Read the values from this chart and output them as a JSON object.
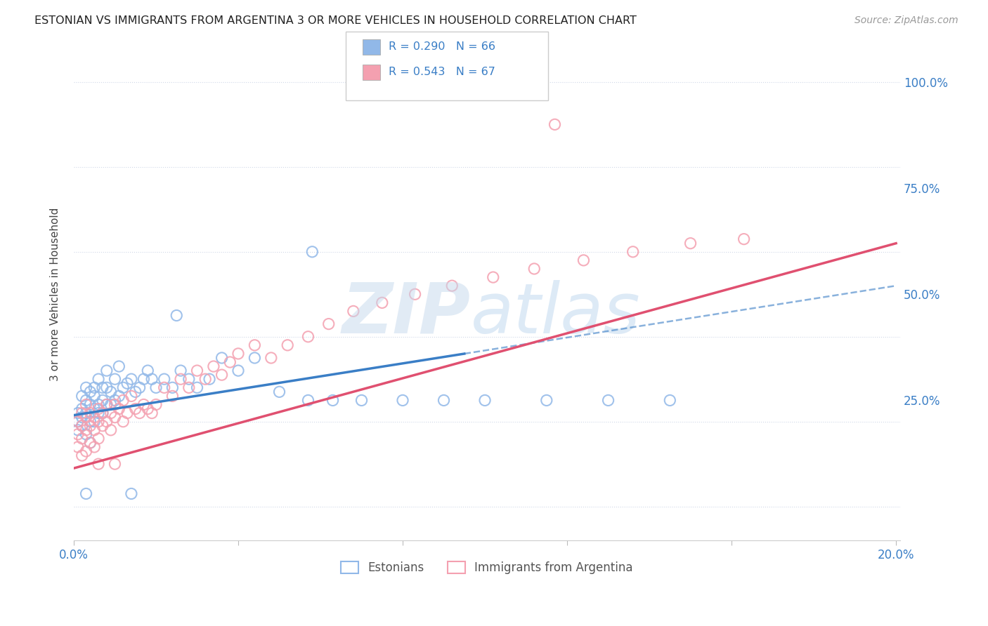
{
  "title": "ESTONIAN VS IMMIGRANTS FROM ARGENTINA 3 OR MORE VEHICLES IN HOUSEHOLD CORRELATION CHART",
  "source": "Source: ZipAtlas.com",
  "ylabel": "3 or more Vehicles in Household",
  "legend_label1": "Estonians",
  "legend_label2": "Immigrants from Argentina",
  "r1": 0.29,
  "n1": 66,
  "r2": 0.543,
  "n2": 67,
  "color1": "#91b8e8",
  "color2": "#f4a0b0",
  "line_color1": "#3a7ec6",
  "line_color2": "#e05070",
  "xmin": 0.0,
  "xmax": 0.2,
  "ymin": -0.08,
  "ymax": 1.08,
  "background_color": "#ffffff",
  "grid_color": "#d0d8e8",
  "blue_line_x0": 0.0,
  "blue_line_y0": 0.215,
  "blue_line_x1": 0.2,
  "blue_line_y1": 0.52,
  "blue_solid_xend": 0.095,
  "pink_line_x0": 0.0,
  "pink_line_y0": 0.09,
  "pink_line_x1": 0.2,
  "pink_line_y1": 0.62,
  "scatter1_x": [
    0.001,
    0.001,
    0.001,
    0.002,
    0.002,
    0.002,
    0.002,
    0.003,
    0.003,
    0.003,
    0.003,
    0.004,
    0.004,
    0.004,
    0.004,
    0.005,
    0.005,
    0.005,
    0.005,
    0.006,
    0.006,
    0.006,
    0.007,
    0.007,
    0.007,
    0.008,
    0.008,
    0.008,
    0.009,
    0.009,
    0.01,
    0.01,
    0.011,
    0.011,
    0.012,
    0.013,
    0.014,
    0.015,
    0.016,
    0.017,
    0.018,
    0.019,
    0.02,
    0.022,
    0.024,
    0.026,
    0.028,
    0.03,
    0.033,
    0.036,
    0.04,
    0.044,
    0.05,
    0.057,
    0.063,
    0.07,
    0.08,
    0.09,
    0.1,
    0.115,
    0.13,
    0.145,
    0.003,
    0.058,
    0.014,
    0.025
  ],
  "scatter1_y": [
    0.22,
    0.2,
    0.18,
    0.26,
    0.23,
    0.21,
    0.19,
    0.25,
    0.28,
    0.22,
    0.17,
    0.24,
    0.27,
    0.2,
    0.15,
    0.23,
    0.26,
    0.2,
    0.28,
    0.24,
    0.22,
    0.3,
    0.25,
    0.28,
    0.22,
    0.24,
    0.28,
    0.32,
    0.24,
    0.27,
    0.25,
    0.3,
    0.26,
    0.33,
    0.28,
    0.29,
    0.3,
    0.27,
    0.28,
    0.3,
    0.32,
    0.3,
    0.28,
    0.3,
    0.28,
    0.32,
    0.3,
    0.28,
    0.3,
    0.35,
    0.32,
    0.35,
    0.27,
    0.25,
    0.25,
    0.25,
    0.25,
    0.25,
    0.25,
    0.25,
    0.25,
    0.25,
    0.03,
    0.6,
    0.03,
    0.45
  ],
  "scatter2_x": [
    0.001,
    0.001,
    0.001,
    0.002,
    0.002,
    0.002,
    0.002,
    0.003,
    0.003,
    0.003,
    0.003,
    0.004,
    0.004,
    0.004,
    0.005,
    0.005,
    0.005,
    0.006,
    0.006,
    0.006,
    0.007,
    0.007,
    0.008,
    0.008,
    0.009,
    0.009,
    0.01,
    0.01,
    0.011,
    0.012,
    0.012,
    0.013,
    0.014,
    0.015,
    0.016,
    0.017,
    0.018,
    0.019,
    0.02,
    0.022,
    0.024,
    0.026,
    0.028,
    0.03,
    0.032,
    0.034,
    0.036,
    0.038,
    0.04,
    0.044,
    0.048,
    0.052,
    0.057,
    0.062,
    0.068,
    0.075,
    0.083,
    0.092,
    0.102,
    0.112,
    0.124,
    0.136,
    0.15,
    0.163,
    0.006,
    0.01,
    0.117
  ],
  "scatter2_y": [
    0.2,
    0.17,
    0.14,
    0.22,
    0.19,
    0.16,
    0.12,
    0.21,
    0.24,
    0.18,
    0.13,
    0.22,
    0.19,
    0.15,
    0.21,
    0.18,
    0.14,
    0.23,
    0.2,
    0.16,
    0.22,
    0.19,
    0.24,
    0.2,
    0.22,
    0.18,
    0.24,
    0.21,
    0.23,
    0.25,
    0.2,
    0.22,
    0.26,
    0.23,
    0.22,
    0.24,
    0.23,
    0.22,
    0.24,
    0.28,
    0.26,
    0.3,
    0.28,
    0.32,
    0.3,
    0.33,
    0.31,
    0.34,
    0.36,
    0.38,
    0.35,
    0.38,
    0.4,
    0.43,
    0.46,
    0.48,
    0.5,
    0.52,
    0.54,
    0.56,
    0.58,
    0.6,
    0.62,
    0.63,
    0.1,
    0.1,
    0.9
  ]
}
